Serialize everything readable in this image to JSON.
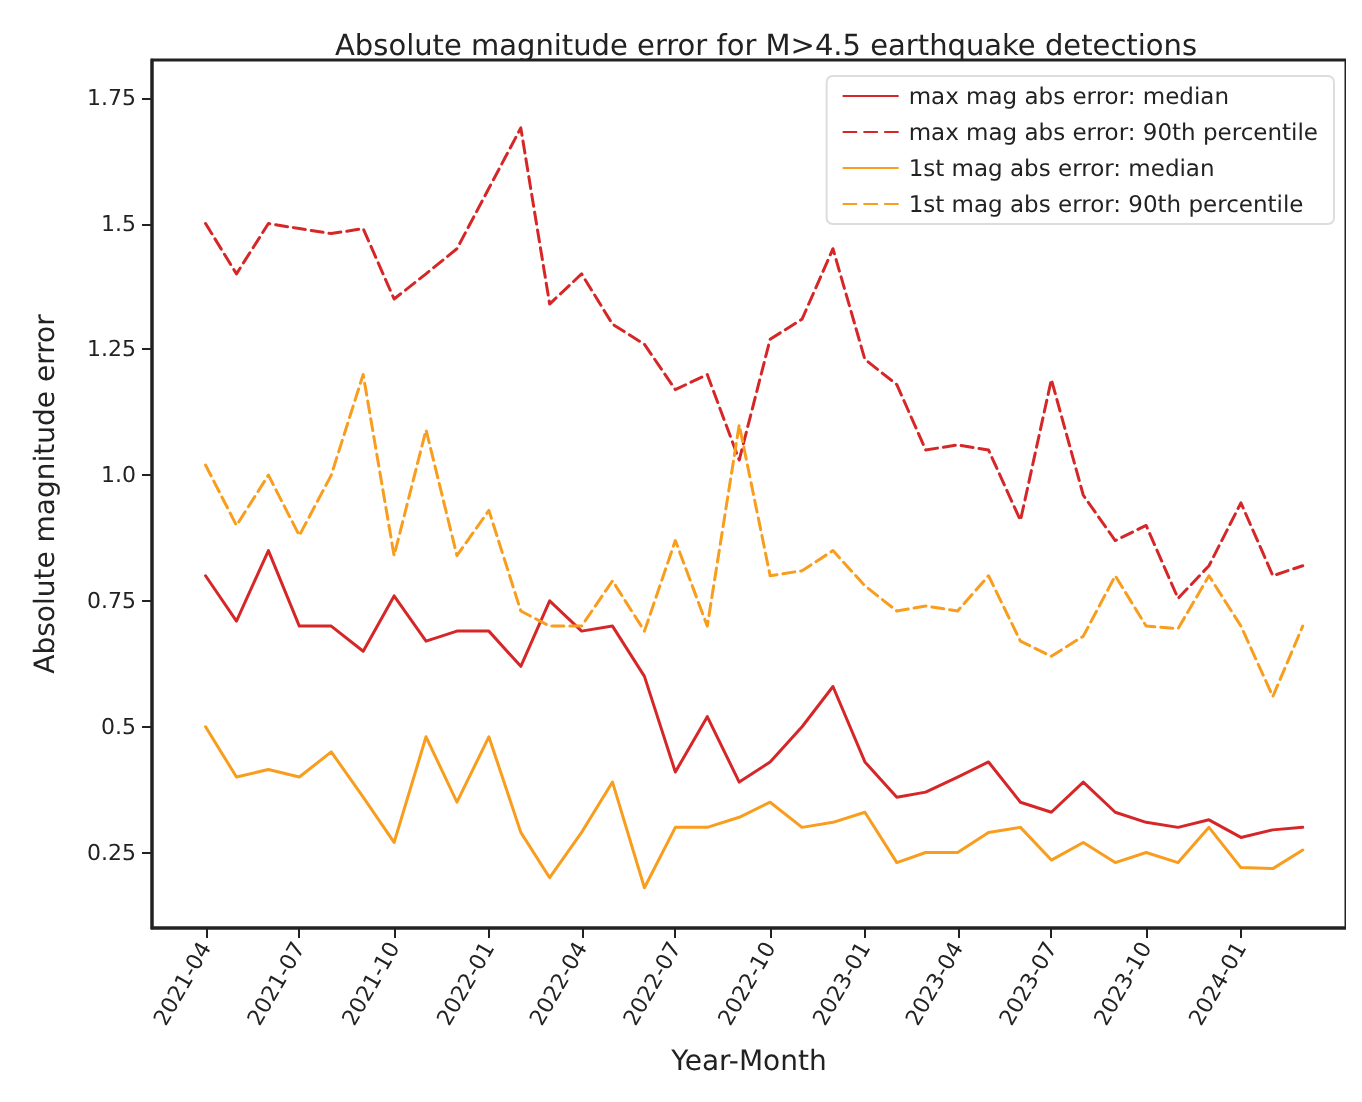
{
  "chart_data": {
    "type": "line",
    "title": "Absolute magnitude error for M>4.5 earthquake detections",
    "xlabel": "Year-Month",
    "ylabel": "Absolute magnitude error",
    "x": [
      "2021-04",
      "2021-05",
      "2021-06",
      "2021-07",
      "2021-08",
      "2021-09",
      "2021-10",
      "2021-11",
      "2021-12",
      "2022-01",
      "2022-02",
      "2022-03",
      "2022-04",
      "2022-05",
      "2022-06",
      "2022-07",
      "2022-08",
      "2022-09",
      "2022-10",
      "2022-11",
      "2022-12",
      "2023-01",
      "2023-02",
      "2023-03",
      "2023-04",
      "2023-05",
      "2023-06",
      "2023-07",
      "2023-08",
      "2023-09",
      "2023-10",
      "2023-11",
      "2023-12",
      "2024-01",
      "2024-02",
      "2024-03"
    ],
    "series": [
      {
        "name": "max mag abs error: median",
        "color": "#d62728",
        "line_style": "solid",
        "values": [
          0.8,
          0.71,
          0.85,
          0.7,
          0.7,
          0.65,
          0.76,
          0.67,
          0.69,
          0.69,
          0.62,
          0.75,
          0.69,
          0.7,
          0.6,
          0.41,
          0.52,
          0.39,
          0.43,
          0.5,
          0.58,
          0.43,
          0.36,
          0.37,
          0.4,
          0.43,
          0.35,
          0.33,
          0.39,
          0.33,
          0.31,
          0.3,
          0.315,
          0.28,
          0.295,
          0.3
        ]
      },
      {
        "name": "max mag abs error: 90th percentile",
        "color": "#d62728",
        "line_style": "dashed",
        "values": [
          1.5,
          1.4,
          1.5,
          1.49,
          1.48,
          1.49,
          1.35,
          1.4,
          1.45,
          1.57,
          1.69,
          1.34,
          1.4,
          1.3,
          1.26,
          1.17,
          1.2,
          1.03,
          1.27,
          1.31,
          1.45,
          1.23,
          1.18,
          1.05,
          1.06,
          1.05,
          0.91,
          1.19,
          0.96,
          0.87,
          0.9,
          0.755,
          0.82,
          0.945,
          0.8,
          0.82
        ]
      },
      {
        "name": "1st mag abs error: median",
        "color": "#f89d1d",
        "line_style": "solid",
        "values": [
          0.5,
          0.4,
          0.415,
          0.4,
          0.45,
          0.36,
          0.27,
          0.48,
          0.35,
          0.48,
          0.29,
          0.2,
          0.29,
          0.39,
          0.18,
          0.3,
          0.3,
          0.32,
          0.35,
          0.3,
          0.31,
          0.33,
          0.23,
          0.25,
          0.25,
          0.29,
          0.3,
          0.235,
          0.27,
          0.23,
          0.25,
          0.23,
          0.3,
          0.22,
          0.218,
          0.255
        ]
      },
      {
        "name": "1st mag abs error: 90th percentile",
        "color": "#f89d1d",
        "line_style": "dashed",
        "values": [
          1.02,
          0.9,
          1.0,
          0.88,
          1.0,
          1.2,
          0.84,
          1.09,
          0.84,
          0.93,
          0.73,
          0.7,
          0.7,
          0.79,
          0.69,
          0.87,
          0.7,
          1.1,
          0.8,
          0.81,
          0.85,
          0.78,
          0.73,
          0.74,
          0.73,
          0.8,
          0.67,
          0.64,
          0.68,
          0.8,
          0.7,
          0.695,
          0.8,
          0.7,
          0.56,
          0.7
        ]
      }
    ],
    "xlim": [
      "2021-02-08",
      "2024-04-12"
    ],
    "xticks": [
      "2021-04",
      "2021-07",
      "2021-10",
      "2022-01",
      "2022-04",
      "2022-07",
      "2022-10",
      "2023-01",
      "2023-04",
      "2023-07",
      "2023-10",
      "2024-01"
    ],
    "ylim": [
      0.1,
      1.825
    ],
    "yticks": [
      0.25,
      0.5,
      0.75,
      {
        "value": 1,
        "label": "1.0"
      },
      1.25,
      1.5,
      1.75
    ],
    "grid": false,
    "legend": "top right",
    "marker": "none"
  }
}
